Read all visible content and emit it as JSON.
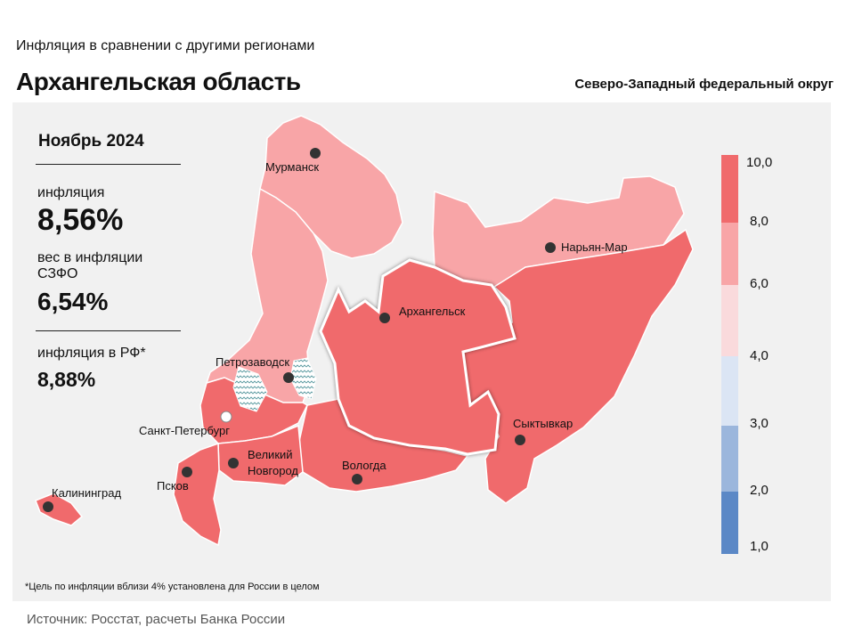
{
  "header": {
    "subtitle": "Инфляция в сравнении с другими регионами",
    "title": "Архангельская область",
    "district": "Северо-Западный федеральный округ"
  },
  "stats": {
    "period": "Ноябрь 2024",
    "inflation_label": "инфляция",
    "inflation_value": "8,56%",
    "weight_label": "вес в инфляции СЗФО",
    "weight_value": "6,54%",
    "rf_label": "инфляция в РФ*",
    "rf_value": "8,88%"
  },
  "map": {
    "highlighted_region": "Архангельская область",
    "cities": {
      "murmansk": "Мурманск",
      "naryan_mar": "Нарьян-Мар",
      "arkhangelsk": "Архангельск",
      "petrozavodsk": "Петрозаводск",
      "spb": "Санкт-Петербург",
      "novgorod_1": "Великий",
      "novgorod_2": "Новгород",
      "pskov": "Псков",
      "vologda": "Вологда",
      "syktyvkar": "Сыктывкар",
      "kaliningrad": "Калининград"
    },
    "colors": {
      "high": "#f06a6c",
      "mid": "#f8a5a7",
      "low": "#fadadc",
      "blue_light": "#dbe5f4",
      "blue_mid": "#9bb6dc",
      "blue_dark": "#5b88c6",
      "water": "#f1f1f1"
    }
  },
  "legend": {
    "ticks": [
      "10,0",
      "8,0",
      "6,0",
      "4,0",
      "3,0",
      "2,0",
      "1,0"
    ]
  },
  "footnote": "*Цель по инфляции вблизи 4% установлена для России в целом",
  "source": "Источник: Росстат, расчеты Банка России"
}
